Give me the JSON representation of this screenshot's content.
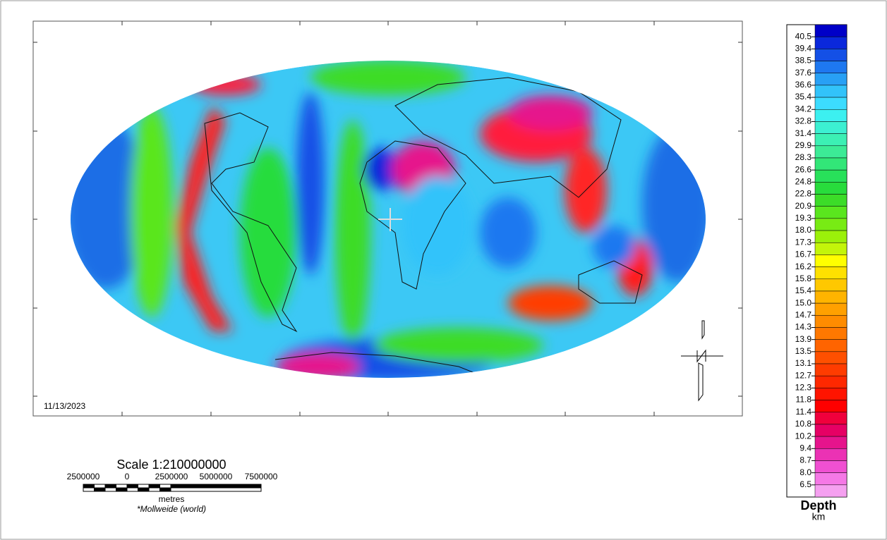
{
  "map": {
    "date": "11/13/2023",
    "scale": {
      "title": "Scale 1:210000000",
      "labels": [
        "2500000",
        "0",
        "2500000",
        "5000000",
        "7500000"
      ],
      "unit": "metres",
      "projection": "*Mollweide (world)"
    },
    "legend": {
      "title": "Depth",
      "unit": "km",
      "levels": [
        "40.5",
        "39.4",
        "38.5",
        "37.6",
        "36.6",
        "35.4",
        "34.2",
        "32.8",
        "31.4",
        "29.9",
        "28.3",
        "26.6",
        "24.8",
        "22.8",
        "20.9",
        "19.3",
        "18.0",
        "17.3",
        "16.7",
        "16.2",
        "15.8",
        "15.4",
        "15.0",
        "14.7",
        "14.3",
        "13.9",
        "13.5",
        "13.1",
        "12.7",
        "12.3",
        "11.8",
        "11.4",
        "10.8",
        "10.2",
        "9.4",
        "8.7",
        "8.0",
        "6.5"
      ],
      "band_colors": [
        "#0000c8",
        "#0a28dc",
        "#1450e6",
        "#1e78f0",
        "#28a0f5",
        "#32c3fa",
        "#3cdcff",
        "#3cf0f0",
        "#3cf0d2",
        "#3cf0b4",
        "#3ceb96",
        "#32e678",
        "#28e15a",
        "#28dc3c",
        "#3cdc28",
        "#5ae61e",
        "#78eb14",
        "#9bf00a",
        "#c3f50a",
        "#ffff00",
        "#ffe100",
        "#ffc800",
        "#ffb400",
        "#ffa000",
        "#ff8c00",
        "#ff7800",
        "#ff6400",
        "#ff5000",
        "#ff3c00",
        "#ff2800",
        "#ff1400",
        "#ff0000",
        "#f0003c",
        "#e60064",
        "#e6148c",
        "#eb32b4",
        "#f050d2",
        "#f578e6",
        "#f5a0f0"
      ]
    }
  }
}
